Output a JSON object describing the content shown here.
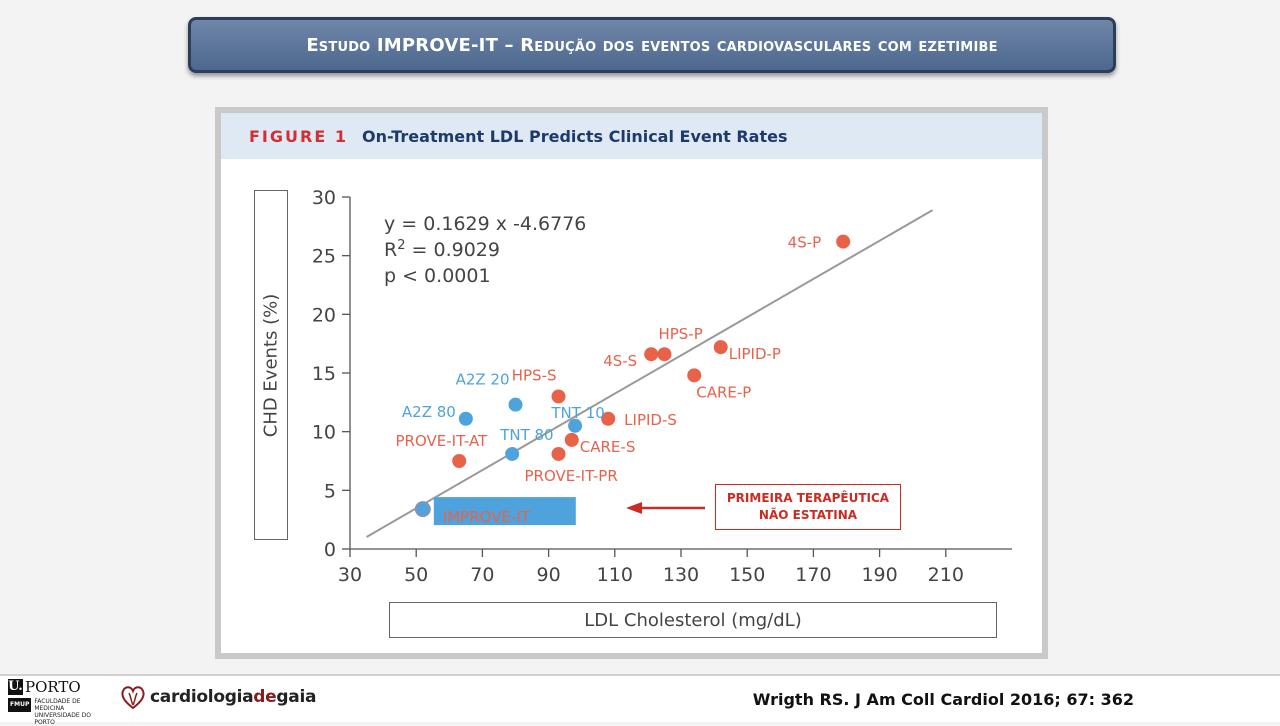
{
  "slide": {
    "title": "Estudo IMPROVE-IT – Redução dos eventos cardiovasculares com ezetimibe",
    "citation": "Wrigth RS. J Am Coll Cardiol 2016; 67: 362"
  },
  "figure": {
    "label": "FIGURE 1",
    "title": "On-Treatment LDL Predicts Clinical Event Rates",
    "header_bg": "#dfe9f4"
  },
  "callout": {
    "line1": "PRIMEIRA TERAPÊUTICA",
    "line2": "NÃO ESTATINA",
    "color": "#cc2b22"
  },
  "logos": {
    "porto_u": "U.",
    "porto_name": "PORTO",
    "porto_fmup": "FMUP",
    "porto_sub1": "FACULDADE DE MEDICINA",
    "porto_sub2": "UNIVERSIDADE DO PORTO",
    "gaia_a": "cardiologia",
    "gaia_b": "de",
    "gaia_c": "gaia"
  },
  "chart_data": {
    "type": "scatter",
    "xlabel": "LDL Cholesterol (mg/dL)",
    "ylabel": "CHD Events (%)",
    "xlim": [
      30,
      230
    ],
    "ylim": [
      0,
      30
    ],
    "xticks": [
      30,
      50,
      70,
      90,
      110,
      130,
      150,
      170,
      190,
      210
    ],
    "yticks": [
      0,
      5,
      10,
      15,
      20,
      25,
      30
    ],
    "annotations": [
      "y = 0.1629 x -4.6776",
      "R2 = 0.9029",
      "p < 0.0001"
    ],
    "regression": {
      "slope": 0.1629,
      "intercept": -4.6776,
      "x_range": [
        35,
        206
      ]
    },
    "colors": {
      "primary": "#e8624a",
      "nonprimary": "#4fa3dc",
      "improve": "#4fa3dc",
      "line": "#999999"
    },
    "points": [
      {
        "label": "4S-P",
        "x": 179,
        "y": 26.2,
        "group": "primary"
      },
      {
        "label": "HPS-P",
        "x": 125,
        "y": 16.6,
        "group": "primary"
      },
      {
        "label": "4S-S",
        "x": 121,
        "y": 16.6,
        "group": "primary"
      },
      {
        "label": "LIPID-P",
        "x": 142,
        "y": 17.2,
        "group": "primary"
      },
      {
        "label": "CARE-P",
        "x": 134,
        "y": 14.8,
        "group": "primary"
      },
      {
        "label": "HPS-S",
        "x": 93,
        "y": 13.0,
        "group": "primary"
      },
      {
        "label": "LIPID-S",
        "x": 108,
        "y": 11.1,
        "group": "primary"
      },
      {
        "label": "CARE-S",
        "x": 97,
        "y": 9.3,
        "group": "primary"
      },
      {
        "label": "PROVE-IT-PR",
        "x": 93,
        "y": 8.1,
        "group": "primary"
      },
      {
        "label": "PROVE-IT-AT",
        "x": 63,
        "y": 7.5,
        "group": "primary"
      },
      {
        "label": "A2Z 20",
        "x": 80,
        "y": 12.3,
        "group": "nonprimary"
      },
      {
        "label": "A2Z 80",
        "x": 65,
        "y": 11.1,
        "group": "nonprimary"
      },
      {
        "label": "TNT 10",
        "x": 98,
        "y": 10.5,
        "group": "nonprimary"
      },
      {
        "label": "TNT 80",
        "x": 79,
        "y": 8.1,
        "group": "nonprimary"
      },
      {
        "label": "IMPROVE-IT",
        "x": 52,
        "y": 3.4,
        "group": "improve"
      }
    ]
  }
}
